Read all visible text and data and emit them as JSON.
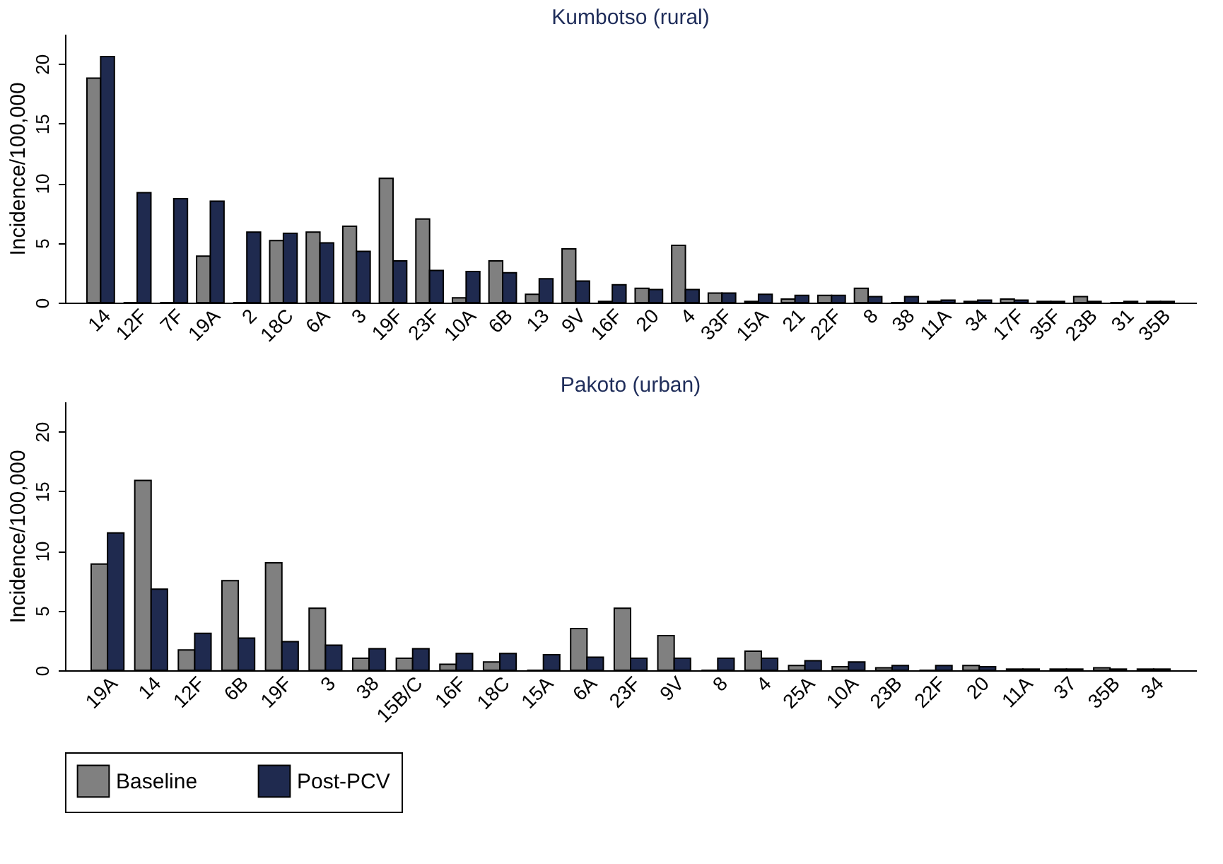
{
  "chart_data": [
    {
      "type": "bar",
      "title": "Kumbotso (rural)",
      "ylabel": "Incidence/100,000",
      "categories": [
        "14",
        "12F",
        "7F",
        "19A",
        "2",
        "18C",
        "6A",
        "3",
        "19F",
        "23F",
        "10A",
        "6B",
        "13",
        "9V",
        "16F",
        "20",
        "4",
        "33F",
        "15A",
        "21",
        "22F",
        "8",
        "38",
        "11A",
        "34",
        "17F",
        "35F",
        "23B",
        "31",
        "35B"
      ],
      "series": [
        {
          "name": "Baseline",
          "color": "#808080",
          "values": [
            18.8,
            0,
            0,
            3.9,
            0,
            5.2,
            5.9,
            6.4,
            10.4,
            7.0,
            0.4,
            3.5,
            0.7,
            4.5,
            0.1,
            1.2,
            4.8,
            0.8,
            0.1,
            0.3,
            0.6,
            1.2,
            0,
            0.1,
            0.1,
            0.3,
            0.1,
            0.5,
            0,
            0.1
          ]
        },
        {
          "name": "Post-PCV",
          "color": "#1f2a4f",
          "values": [
            20.6,
            9.2,
            8.7,
            8.5,
            5.9,
            5.8,
            5.0,
            4.3,
            3.5,
            2.7,
            2.6,
            2.5,
            2.0,
            1.8,
            1.5,
            1.1,
            1.1,
            0.8,
            0.7,
            0.6,
            0.6,
            0.5,
            0.5,
            0.2,
            0.2,
            0.2,
            0.1,
            0.1,
            0.1,
            0.1
          ]
        }
      ],
      "ylim": [
        0,
        22.5
      ],
      "yticks": [
        0,
        5,
        10,
        15,
        20
      ],
      "grid": false,
      "legend": "bottom"
    },
    {
      "type": "bar",
      "title": "Pakoto (urban)",
      "ylabel": "Incidence/100,000",
      "categories": [
        "19A",
        "14",
        "12F",
        "6B",
        "19F",
        "3",
        "38",
        "15B/C",
        "16F",
        "18C",
        "15A",
        "6A",
        "23F",
        "9V",
        "8",
        "4",
        "25A",
        "10A",
        "23B",
        "22F",
        "20",
        "11A",
        "37",
        "35B",
        "34"
      ],
      "series": [
        {
          "name": "Baseline",
          "color": "#808080",
          "values": [
            8.9,
            15.9,
            1.7,
            7.5,
            9.0,
            5.2,
            1.0,
            1.0,
            0.5,
            0.7,
            0,
            3.5,
            5.2,
            2.9,
            0,
            1.6,
            0.4,
            0.3,
            0.2,
            0,
            0.4,
            0.1,
            0.1,
            0.2,
            0.1
          ]
        },
        {
          "name": "Post-PCV",
          "color": "#1f2a4f",
          "values": [
            11.5,
            6.8,
            3.1,
            2.7,
            2.4,
            2.1,
            1.8,
            1.8,
            1.4,
            1.4,
            1.3,
            1.1,
            1.0,
            1.0,
            1.0,
            1.0,
            0.8,
            0.7,
            0.4,
            0.4,
            0.3,
            0.1,
            0.1,
            0.1,
            0.1
          ]
        }
      ],
      "ylim": [
        0,
        22.5
      ],
      "yticks": [
        0,
        5,
        10,
        15,
        20
      ],
      "grid": false,
      "legend": "bottom"
    }
  ]
}
